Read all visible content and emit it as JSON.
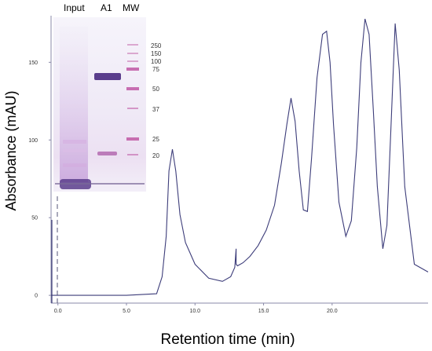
{
  "chart_data": {
    "type": "line",
    "title": "",
    "xlabel": "Retention time (min)",
    "ylabel": "Absorbance (mAU)",
    "xlim": [
      -0.5,
      27
    ],
    "ylim": [
      -5,
      180
    ],
    "x_ticks": [
      "0.0",
      "5.0",
      "10.0",
      "15.0",
      "20.0"
    ],
    "x_tick_values": [
      0,
      5,
      10,
      15,
      20
    ],
    "y_ticks": [
      "0",
      "50",
      "100",
      "150"
    ],
    "y_tick_values": [
      0,
      50,
      100,
      150
    ],
    "line_color": "#3d3d7a",
    "series": [
      {
        "x": [
          -0.5,
          0.1,
          5,
          7.2,
          7.6,
          7.9,
          8.1,
          8.35,
          8.6,
          8.9,
          9.3,
          10,
          11,
          12,
          12.6,
          12.9,
          13.0,
          13.0,
          13.1,
          13.5,
          14,
          14.6,
          15.2,
          15.8,
          16.3,
          16.7,
          17.0,
          17.3,
          17.6,
          17.9,
          18.2,
          18.5,
          18.9,
          19.3,
          19.6,
          19.85,
          20.1,
          20.5,
          21.0,
          21.4,
          21.8,
          22.1,
          22.4,
          22.7,
          23.0,
          23.3,
          23.7,
          24.0,
          24.3,
          24.6,
          24.9,
          25.3,
          26,
          27
        ],
        "y": [
          0,
          0,
          0,
          1,
          12,
          38,
          80,
          94,
          80,
          52,
          34,
          20,
          11,
          9,
          12,
          18,
          30,
          20,
          19,
          21,
          25,
          32,
          42,
          58,
          85,
          110,
          127,
          112,
          80,
          55,
          54,
          88,
          140,
          168,
          170,
          150,
          110,
          60,
          38,
          48,
          95,
          150,
          178,
          168,
          120,
          70,
          30,
          45,
          110,
          175,
          145,
          70,
          20,
          15
        ]
      }
    ],
    "gel_lane_labels": [
      "Input",
      "A1",
      "MW"
    ],
    "mw_marker_labels": [
      "250",
      "150",
      "100",
      "75",
      "50",
      "37",
      "25",
      "20"
    ]
  },
  "colors": {
    "trace": "#3d3d7a",
    "axis": "#8a8aa8",
    "gel_background": "#f1eef8",
    "band": "#5a3d8c",
    "marker_band": "#c25fa8"
  }
}
